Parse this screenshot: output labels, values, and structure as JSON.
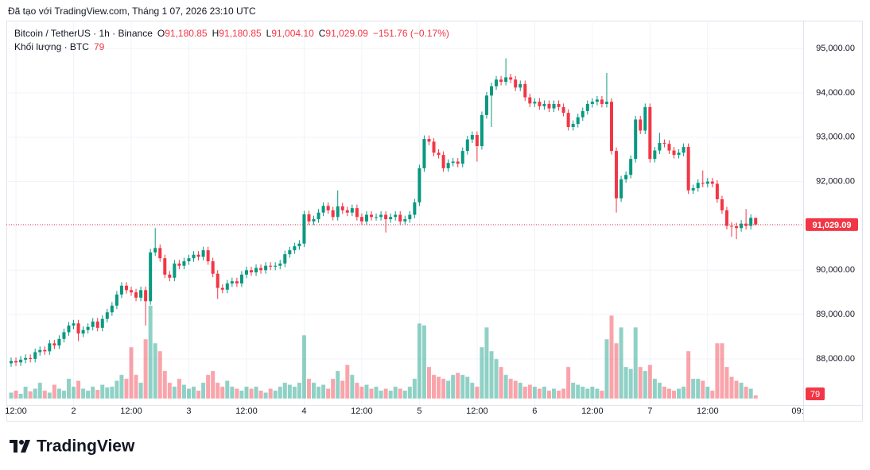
{
  "chart_data": {
    "type": "candlestick",
    "watermark": "Đã tạo với TradingView.com, Tháng 1 07, 2026 23:10 UTC",
    "legend": {
      "symbol": "Bitcoin / TetherUS · 1h · Binance",
      "o_label": "O",
      "open": "91,180.85",
      "h_label": "H",
      "high": "91,180.85",
      "l_label": "L",
      "low": "91,004.10",
      "c_label": "C",
      "close": "91,029.09",
      "change": "−151.76 (−0.17%)",
      "volume_label": "Khối lượng · BTC",
      "volume": "79"
    },
    "up_color": "#089981",
    "down_color": "#f23645",
    "grid": true,
    "categories": [
      null,
      "12:00",
      null,
      null,
      null,
      null,
      null,
      null,
      null,
      null,
      null,
      null,
      null,
      "2",
      null,
      null,
      null,
      null,
      null,
      null,
      null,
      null,
      null,
      null,
      null,
      "12:00",
      null,
      null,
      null,
      null,
      null,
      null,
      null,
      null,
      null,
      null,
      null,
      "3",
      null,
      null,
      null,
      null,
      null,
      null,
      null,
      null,
      null,
      null,
      null,
      "12:00",
      null,
      null,
      null,
      null,
      null,
      null,
      null,
      null,
      null,
      null,
      null,
      "4",
      null,
      null,
      null,
      null,
      null,
      null,
      null,
      null,
      null,
      null,
      null,
      "12:00",
      null,
      null,
      null,
      null,
      null,
      null,
      null,
      null,
      null,
      null,
      null,
      "5",
      null,
      null,
      null,
      null,
      null,
      null,
      null,
      null,
      null,
      null,
      null,
      "12:00",
      null,
      null,
      null,
      null,
      null,
      null,
      null,
      null,
      null,
      null,
      null,
      "6",
      null,
      null,
      null,
      null,
      null,
      null,
      null,
      null,
      null,
      null,
      null,
      "12:00",
      null,
      null,
      null,
      null,
      null,
      null,
      null,
      null,
      null,
      null,
      null,
      "7",
      null,
      null,
      null,
      null,
      null,
      null,
      null,
      null,
      null,
      null,
      null,
      "12:00",
      null,
      null,
      null,
      null,
      null,
      null,
      null,
      null,
      null,
      null
    ],
    "x_edge_label": "09:",
    "open": [
      87900,
      87950,
      87920,
      87980,
      88020,
      88000,
      88150,
      88200,
      88170,
      88350,
      88300,
      88450,
      88600,
      88750,
      88800,
      88570,
      88650,
      88720,
      88840,
      88700,
      88900,
      89050,
      89200,
      89450,
      89650,
      89550,
      89500,
      89380,
      89550,
      89300,
      90400,
      90500,
      90270,
      89900,
      89830,
      90150,
      90100,
      90200,
      90270,
      90350,
      90300,
      90450,
      90200,
      89920,
      89600,
      89560,
      89700,
      89750,
      89700,
      89900,
      90000,
      89950,
      90050,
      90000,
      90100,
      90080,
      90100,
      90150,
      90360,
      90450,
      90540,
      90600,
      91260,
      91100,
      91150,
      91300,
      91450,
      91350,
      91200,
      91440,
      91350,
      91300,
      91400,
      91200,
      91100,
      91250,
      91200,
      91200,
      91250,
      91150,
      91200,
      91250,
      91100,
      91150,
      91250,
      91530,
      92300,
      92960,
      92900,
      92650,
      92600,
      92300,
      92420,
      92450,
      92400,
      92690,
      92950,
      93050,
      92800,
      93500,
      93940,
      94150,
      94300,
      94250,
      94350,
      94300,
      94120,
      94200,
      93900,
      93760,
      93800,
      93700,
      93750,
      93650,
      93750,
      93680,
      93550,
      93230,
      93300,
      93450,
      93590,
      93750,
      93800,
      93850,
      93750,
      93800,
      92690,
      91620,
      92050,
      92150,
      92510,
      93400,
      93150,
      93680,
      92510,
      92700,
      92870,
      92850,
      92700,
      92600,
      92650,
      92780,
      91800,
      91850,
      91970,
      91950,
      92000,
      91950,
      91600,
      91350,
      91000,
      90990,
      90950,
      91050,
      91000,
      91180.85
    ],
    "high": [
      88030,
      88030,
      88060,
      88100,
      88100,
      88230,
      88280,
      88280,
      88430,
      88430,
      88530,
      88680,
      88830,
      88880,
      88880,
      88730,
      88800,
      88920,
      88920,
      88980,
      89130,
      89280,
      89530,
      89730,
      89730,
      89630,
      89580,
      89630,
      89630,
      90480,
      90950,
      90580,
      90350,
      89980,
      90230,
      90230,
      90280,
      90350,
      90430,
      90430,
      90530,
      90530,
      90280,
      90000,
      89680,
      89780,
      89830,
      89830,
      89980,
      90080,
      90080,
      90130,
      90130,
      90180,
      90180,
      90180,
      90230,
      90440,
      90530,
      90620,
      90680,
      91340,
      91340,
      91230,
      91380,
      91530,
      91530,
      91430,
      91800,
      91520,
      91430,
      91480,
      91480,
      91280,
      91330,
      91330,
      91280,
      91330,
      91330,
      91280,
      91330,
      91330,
      91230,
      91330,
      91610,
      92380,
      93040,
      93040,
      92980,
      92730,
      92680,
      92500,
      92530,
      92530,
      92770,
      93030,
      93130,
      93130,
      93580,
      94020,
      94230,
      94380,
      94380,
      94780,
      94430,
      94380,
      94280,
      94280,
      93980,
      93880,
      93880,
      93830,
      93830,
      93830,
      93830,
      93760,
      93630,
      93380,
      93530,
      93670,
      93830,
      93880,
      93930,
      93930,
      94450,
      93880,
      92770,
      92130,
      92230,
      92590,
      93480,
      93480,
      93760,
      93760,
      92780,
      93100,
      92950,
      92930,
      92780,
      92730,
      92860,
      92860,
      91930,
      92050,
      92250,
      92080,
      92080,
      92030,
      91680,
      91430,
      91080,
      91070,
      91130,
      91380,
      91260,
      91180.85
    ],
    "low": [
      87820,
      87840,
      87840,
      87900,
      87920,
      87920,
      88070,
      88090,
      88090,
      88220,
      88220,
      88370,
      88520,
      88670,
      88400,
      88490,
      88570,
      88640,
      88620,
      88620,
      88820,
      88970,
      89120,
      89370,
      89470,
      89420,
      89300,
      89300,
      88750,
      89220,
      90320,
      90190,
      89820,
      89750,
      89750,
      90020,
      90020,
      90120,
      90190,
      90220,
      90220,
      90120,
      89840,
      89350,
      89480,
      89480,
      89620,
      89620,
      89620,
      89820,
      89870,
      89870,
      89920,
      89920,
      90000,
      90000,
      90020,
      90070,
      90280,
      90370,
      90460,
      90520,
      91020,
      91020,
      91070,
      91220,
      91270,
      91120,
      91120,
      91270,
      91220,
      91220,
      91120,
      91020,
      91020,
      91120,
      91120,
      91120,
      90850,
      91070,
      91120,
      91020,
      91020,
      91070,
      91170,
      91450,
      92220,
      92820,
      92570,
      92520,
      92220,
      92220,
      92340,
      92320,
      92320,
      92610,
      92870,
      92450,
      92720,
      93420,
      93230,
      94070,
      94170,
      94170,
      94220,
      94040,
      94040,
      93820,
      93680,
      93680,
      93620,
      93620,
      93570,
      93570,
      93600,
      93470,
      93150,
      93150,
      93220,
      93370,
      93510,
      93670,
      93720,
      93670,
      93670,
      92610,
      91300,
      91540,
      91970,
      92070,
      92430,
      93070,
      93070,
      92430,
      92430,
      92620,
      92770,
      92620,
      92520,
      92520,
      92570,
      91720,
      91720,
      91770,
      91870,
      91870,
      91870,
      91520,
      91270,
      90920,
      90750,
      90700,
      90870,
      90920,
      90920,
      91004.1
    ],
    "close": [
      87950,
      87920,
      87980,
      88020,
      88000,
      88150,
      88200,
      88170,
      88350,
      88300,
      88450,
      88600,
      88750,
      88800,
      88570,
      88650,
      88720,
      88840,
      88700,
      88900,
      89050,
      89200,
      89450,
      89650,
      89550,
      89500,
      89380,
      89550,
      89300,
      90400,
      90500,
      90270,
      89900,
      89830,
      90150,
      90100,
      90200,
      90270,
      90350,
      90300,
      90450,
      90200,
      89920,
      89600,
      89560,
      89700,
      89750,
      89700,
      89900,
      90000,
      89950,
      90050,
      90000,
      90100,
      90080,
      90100,
      90150,
      90360,
      90450,
      90540,
      90600,
      91260,
      91100,
      91150,
      91300,
      91450,
      91350,
      91200,
      91440,
      91350,
      91300,
      91400,
      91200,
      91100,
      91250,
      91200,
      91200,
      91250,
      91150,
      91200,
      91250,
      91100,
      91150,
      91250,
      91530,
      92300,
      92960,
      92900,
      92650,
      92600,
      92300,
      92420,
      92450,
      92400,
      92690,
      92950,
      93050,
      92800,
      93500,
      93940,
      94150,
      94300,
      94250,
      94350,
      94300,
      94120,
      94200,
      93900,
      93760,
      93800,
      93700,
      93750,
      93650,
      93750,
      93680,
      93550,
      93230,
      93300,
      93450,
      93590,
      93750,
      93800,
      93850,
      93750,
      93800,
      92690,
      91620,
      92050,
      92150,
      92510,
      93400,
      93150,
      93680,
      92510,
      92700,
      92870,
      92850,
      92700,
      92600,
      92650,
      92780,
      91800,
      91850,
      91970,
      91950,
      92000,
      91950,
      91600,
      91350,
      91000,
      90990,
      90950,
      91050,
      91000,
      91180.85,
      91029.09
    ],
    "volume": [
      150,
      200,
      120,
      300,
      180,
      250,
      400,
      200,
      150,
      350,
      250,
      200,
      500,
      300,
      450,
      250,
      200,
      300,
      220,
      350,
      280,
      300,
      450,
      600,
      500,
      1300,
      600,
      400,
      1500,
      2350,
      1400,
      1200,
      700,
      400,
      300,
      500,
      350,
      250,
      300,
      200,
      400,
      600,
      700,
      400,
      300,
      450,
      300,
      250,
      200,
      300,
      250,
      300,
      200,
      150,
      250,
      200,
      300,
      400,
      350,
      300,
      400,
      1600,
      500,
      400,
      300,
      350,
      250,
      500,
      700,
      450,
      850,
      600,
      400,
      300,
      350,
      250,
      300,
      200,
      250,
      200,
      300,
      250,
      200,
      300,
      500,
      1900,
      1850,
      800,
      600,
      550,
      500,
      450,
      600,
      650,
      600,
      550,
      400,
      300,
      1300,
      1800,
      1200,
      1000,
      800,
      600,
      500,
      450,
      400,
      300,
      350,
      300,
      250,
      300,
      200,
      250,
      200,
      250,
      800,
      400,
      350,
      300,
      250,
      300,
      250,
      200,
      1500,
      2100,
      1400,
      1800,
      800,
      750,
      1800,
      800,
      700,
      850,
      500,
      400,
      300,
      250,
      200,
      250,
      300,
      1200,
      500,
      500,
      450,
      300,
      200,
      1400,
      1400,
      800,
      550,
      450,
      400,
      300,
      250,
      79
    ],
    "ylim": [
      86960,
      95630
    ],
    "yticks": [
      {
        "value": 88000,
        "label": "88,000.00"
      },
      {
        "value": 89000,
        "label": "89,000.00"
      },
      {
        "value": 90000,
        "label": "90,000.00"
      },
      {
        "value": 91000,
        "label": "91,000.00"
      },
      {
        "value": 92000,
        "label": "92,000.00"
      },
      {
        "value": 93000,
        "label": "93,000.00"
      },
      {
        "value": 94000,
        "label": "94,000.00"
      },
      {
        "value": 95000,
        "label": "95,000.00"
      }
    ],
    "last_price_label": "91,029.09",
    "last_volume_label": "79"
  },
  "brand": "TradingView"
}
